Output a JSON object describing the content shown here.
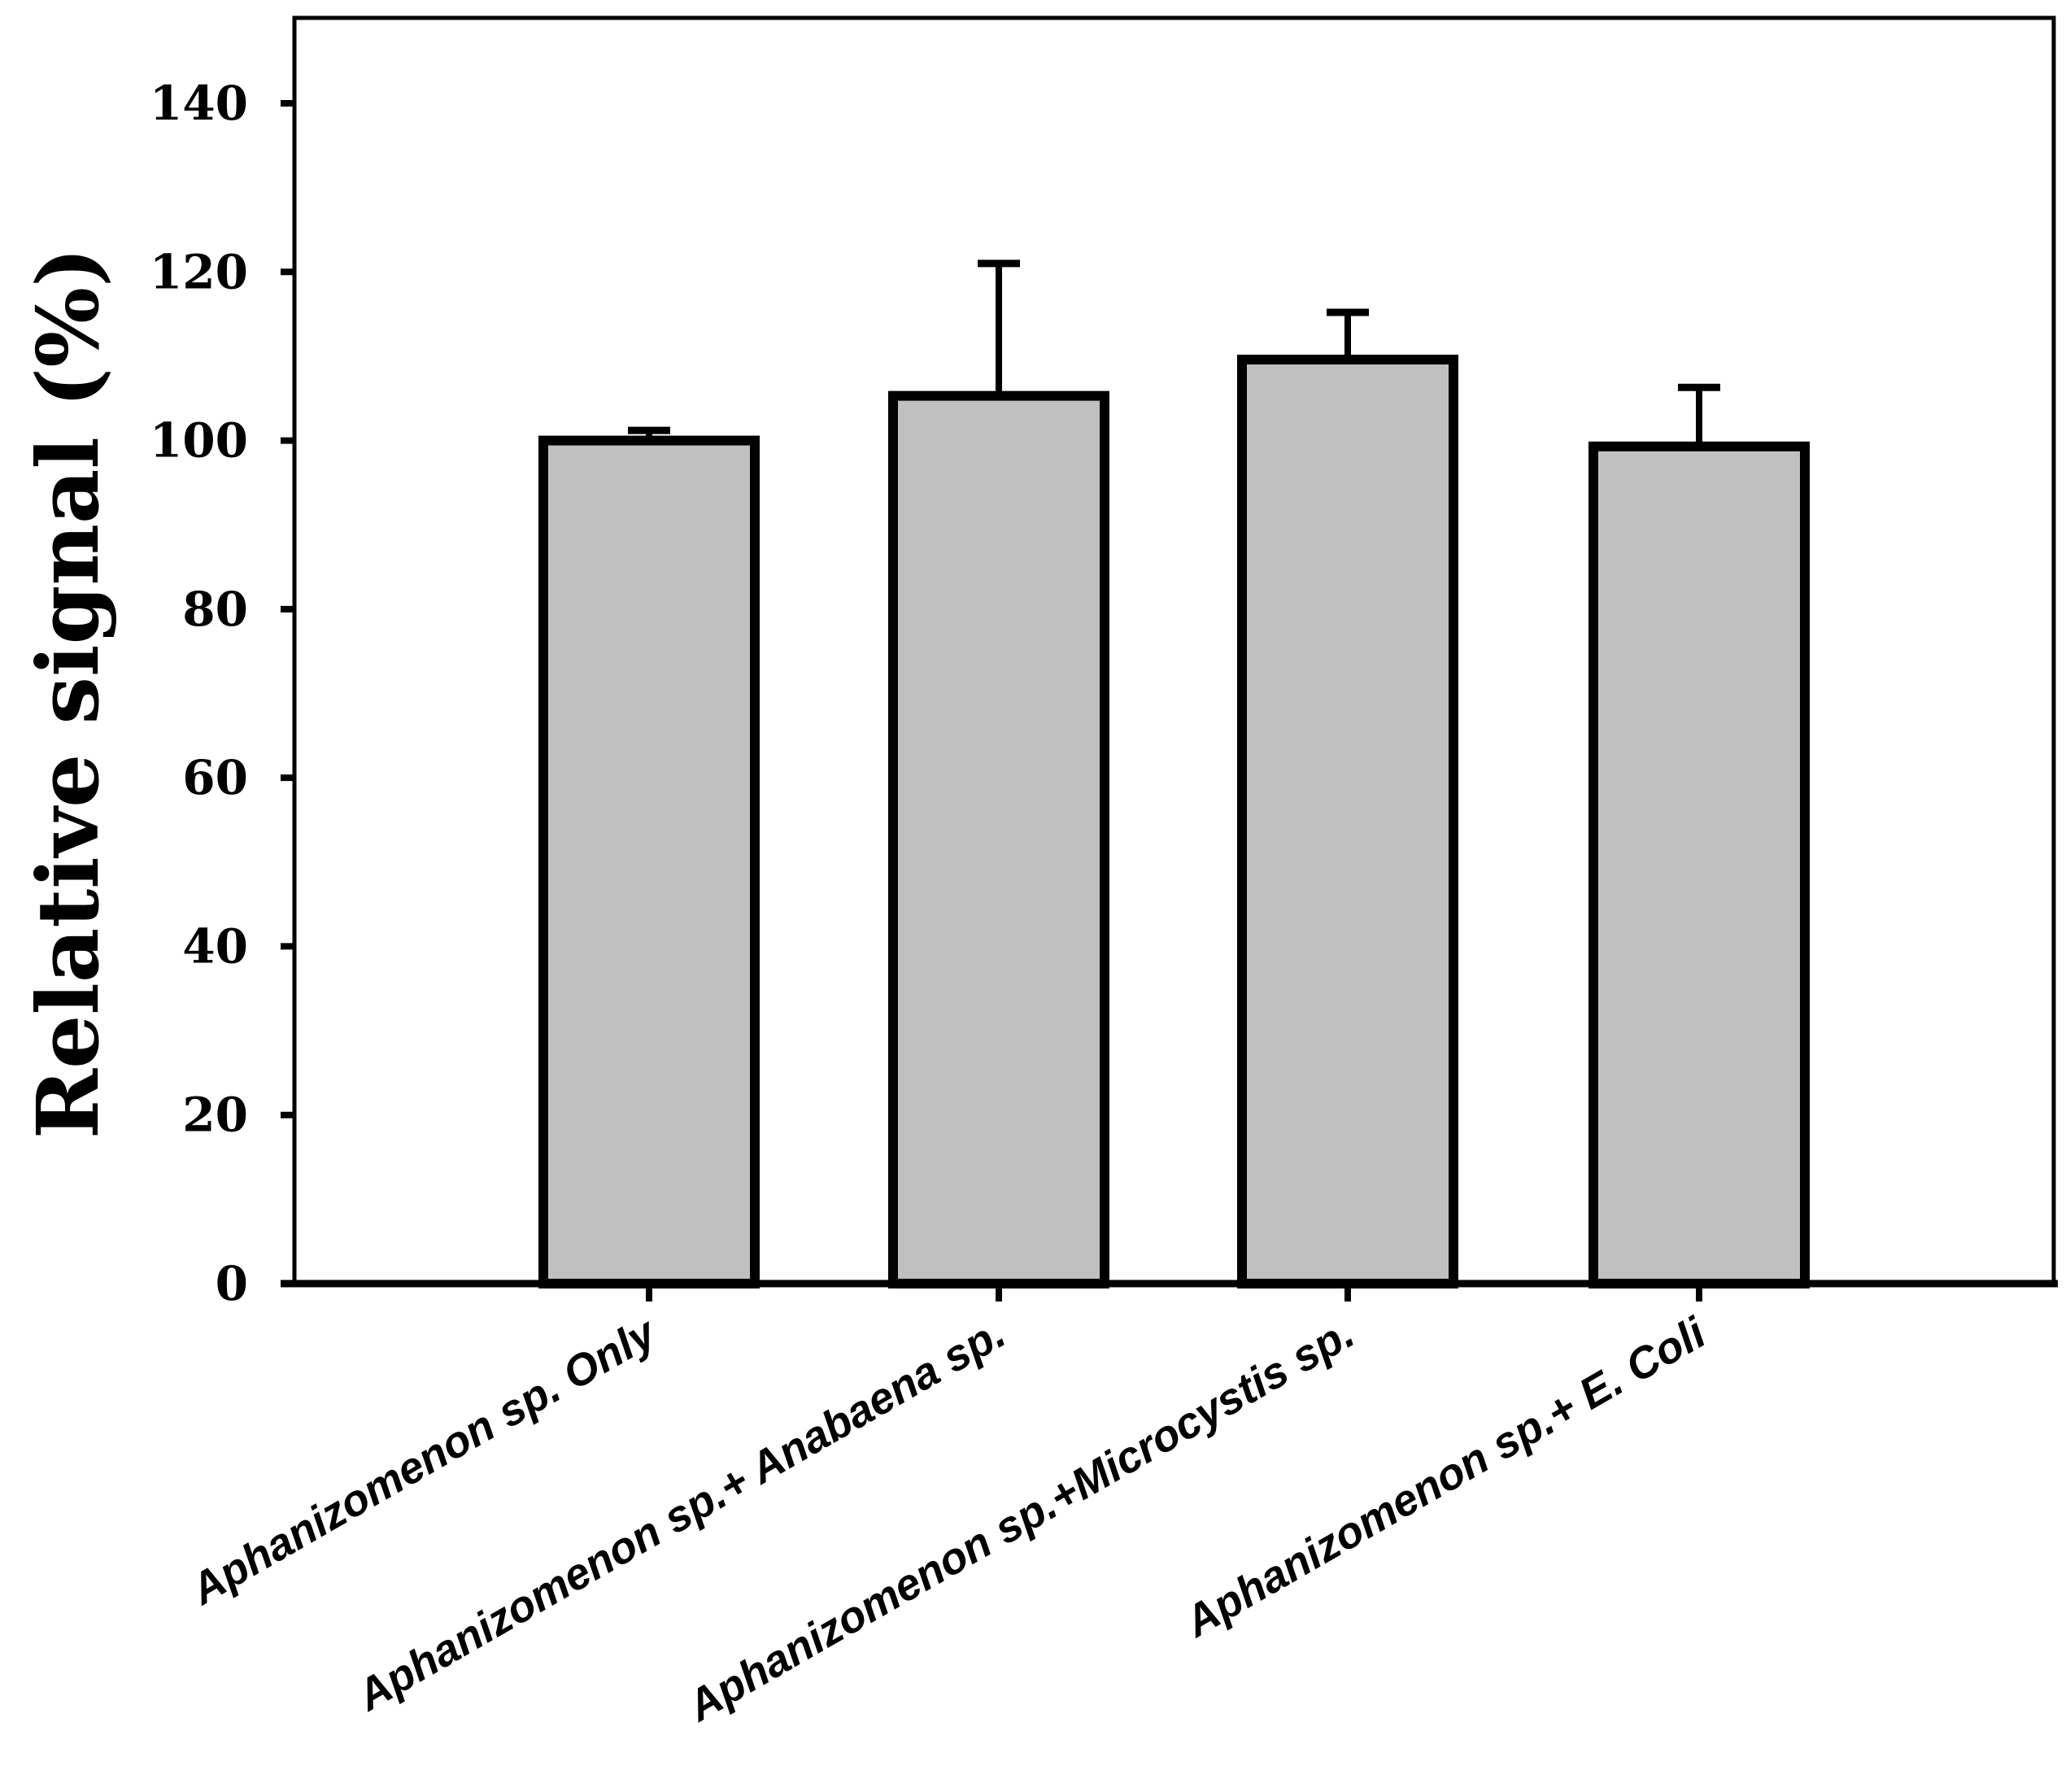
{
  "chart_data": {
    "type": "bar",
    "title": "",
    "xlabel": "",
    "ylabel": "Relative signal (%)",
    "ylim": [
      0,
      150
    ],
    "yticks": [
      0,
      20,
      40,
      60,
      80,
      100,
      120,
      140
    ],
    "grid": false,
    "legend": "none",
    "categories": [
      "Aphanizomenon sp. Only",
      "Aphanizomenon sp.+ Anabaena sp.",
      "Aphanizomenon sp.+Microcystis sp.",
      "Aphanizomenon sp.+ E. Coli"
    ],
    "series": [
      {
        "values": [
          100,
          105.3,
          109.6,
          99.3
        ],
        "error": [
          1.2,
          15.7,
          5.6,
          7.0
        ]
      }
    ],
    "colors": {
      "bar_fill": "#c0c0c0",
      "bar_stroke": "#000000",
      "axis": "#000000"
    }
  }
}
